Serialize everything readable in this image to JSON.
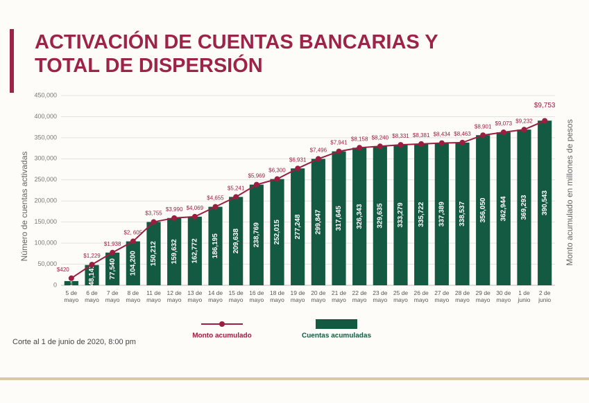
{
  "chart_data": {
    "type": "bar",
    "title": "ACTIVACIÓN DE CUENTAS BANCARIAS Y TOTAL DE DISPERSIÓN",
    "ylabel": "Número de cuentas activadas",
    "y2label": "Monto acumulado en millones de pesos",
    "note": "Corte al 1 de junio de 2020, 8:00 pm",
    "categories": [
      "5 de mayo",
      "6 de mayo",
      "7 de mayo",
      "8 de mayo",
      "11 de mayo",
      "12 de mayo",
      "13 de mayo",
      "14 de mayo",
      "15 de mayo",
      "16 de mayo",
      "18 de mayo",
      "19 de mayo",
      "20 de mayo",
      "21 de mayo",
      "22 de mayo",
      "23 de mayo",
      "25 de mayo",
      "26 de mayo",
      "27 de mayo",
      "28 de mayo",
      "29 de mayo",
      "30 de mayo",
      "1 de junio",
      "2 de junio"
    ],
    "series": [
      {
        "name": "Cuentas acumuladas",
        "color": "#145a42",
        "values": [
          10000,
          48141,
          77540,
          104200,
          150212,
          159632,
          162772,
          186195,
          209638,
          238769,
          252015,
          277248,
          299847,
          317645,
          326343,
          329635,
          333279,
          335722,
          337389,
          338537,
          356050,
          362944,
          369293,
          390543
        ],
        "value_labels": [
          "10,000",
          "48,141",
          "77,540",
          "104,200",
          "150,212",
          "159,632",
          "162,772",
          "186,195",
          "209,638",
          "238,769",
          "252,015",
          "277,248",
          "299,847",
          "317,645",
          "326,343",
          "329,635",
          "333,279",
          "335,722",
          "337,389",
          "338,537",
          "356,050",
          "362,944",
          "369,293",
          "390,543"
        ]
      },
      {
        "name": "Monto acumulado",
        "type": "line",
        "axis": "y2",
        "color": "#9b1d3f",
        "values": [
          420,
          1229,
          1938,
          2605,
          3755,
          3990,
          4069,
          4655,
          5241,
          5969,
          6300,
          6931,
          7496,
          7941,
          8158,
          8240,
          8331,
          8381,
          8434,
          8463,
          8901,
          9073,
          9232,
          9753
        ],
        "value_labels": [
          "$420",
          "$1,229",
          "$1,938",
          "$2, 605",
          "$3,755",
          "$3,990",
          "$4,069",
          "$4,655",
          "$5,241",
          "$5,969",
          "$6,300",
          "$6,931",
          "$7,496",
          "$7,941",
          "$8,158",
          "$8,240",
          "$8,331",
          "$8,381",
          "$8,434",
          "$8,463",
          "$8,901",
          "$9,073",
          "$9,232",
          "$9,753"
        ]
      }
    ],
    "ylim": [
      0,
      450000
    ],
    "yticks": [
      {
        "value": 0,
        "label": "0"
      },
      {
        "value": 50000,
        "label": "50,000"
      },
      {
        "value": 100000,
        "label": "100,000"
      },
      {
        "value": 150000,
        "label": "150,000"
      },
      {
        "value": 200000,
        "label": "200,000"
      },
      {
        "value": 250000,
        "label": "250,000"
      },
      {
        "value": 300000,
        "label": "300,000"
      },
      {
        "value": 350000,
        "label": "350,000"
      },
      {
        "value": 400000,
        "label": "400,000"
      },
      {
        "value": 450000,
        "label": "450,000"
      }
    ],
    "y2lim": [
      0,
      11250
    ],
    "grid": true
  }
}
